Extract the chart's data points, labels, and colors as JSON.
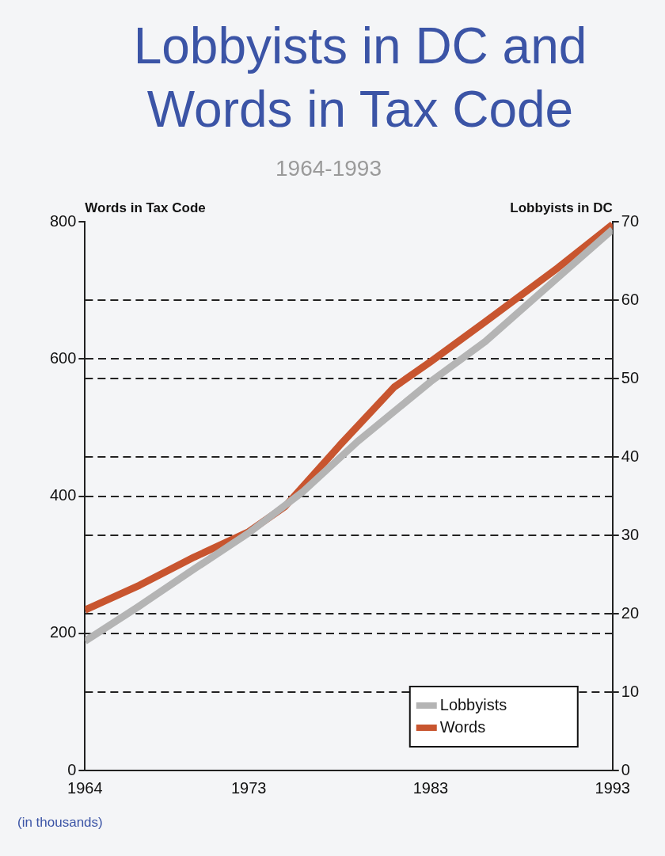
{
  "chart_data": {
    "type": "line",
    "title": "Lobbyists in DC and Words in Tax Code",
    "subtitle": "1964-1993",
    "ylabel": "Words in Tax Code",
    "y2label": "Lobbyists in DC",
    "xlim": [
      1964,
      1993
    ],
    "xticks": [
      1964,
      1973,
      1983,
      1993
    ],
    "ylim": [
      0,
      800
    ],
    "yticks": [
      0,
      200,
      400,
      600,
      800
    ],
    "y2lim": [
      0,
      70
    ],
    "y2ticks": [
      0,
      10,
      20,
      30,
      40,
      50,
      60,
      70
    ],
    "grid": "y",
    "legend": "bottom right",
    "marker": "none",
    "line_style": "solid",
    "annotations": [
      "(in thousands)"
    ],
    "series": [
      {
        "name": "Lobbyists",
        "color": "#b4b4b4",
        "axis": "y2",
        "x": [
          1964,
          1967,
          1970,
          1973,
          1976,
          1979,
          1983,
          1986,
          1990,
          1993
        ],
        "values": [
          16.5,
          21,
          25.7,
          30.3,
          35.6,
          42,
          49.6,
          54.7,
          62.9,
          69
        ]
      },
      {
        "name": "Words",
        "color": "#c8552f",
        "axis": "y",
        "x": [
          1964,
          1967,
          1970,
          1973,
          1975,
          1978,
          1981,
          1983,
          1986,
          1990,
          1993
        ],
        "values": [
          234,
          270,
          311,
          348,
          385,
          474,
          559,
          596,
          654,
          733,
          796
        ]
      }
    ]
  }
}
